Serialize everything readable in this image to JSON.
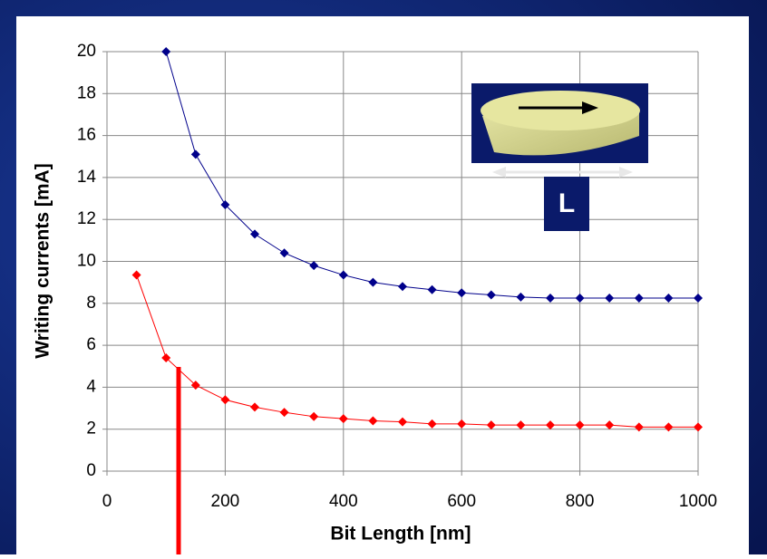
{
  "chart_data": {
    "type": "line",
    "xlabel": "Bit Length [nm]",
    "ylabel": "Writing currents [mA]",
    "xlim": [
      0,
      1000
    ],
    "xticks": [
      0,
      200,
      400,
      600,
      800,
      1000
    ],
    "ylim": [
      0,
      20
    ],
    "yticks": [
      0,
      2,
      4,
      6,
      8,
      10,
      12,
      14,
      16,
      18,
      20
    ],
    "grid": true,
    "inset_label": "L",
    "series": [
      {
        "color": "#00008b",
        "x": [
          100,
          150,
          200,
          250,
          300,
          350,
          400,
          450,
          500,
          550,
          600,
          650,
          700,
          750,
          800,
          850,
          900,
          950,
          1000
        ],
        "values": [
          20,
          15.1,
          12.7,
          11.3,
          10.4,
          9.8,
          9.35,
          9.0,
          8.8,
          8.65,
          8.5,
          8.4,
          8.3,
          8.25,
          8.25,
          8.25,
          8.25,
          8.25,
          8.25
        ]
      },
      {
        "color": "#ff0000",
        "x": [
          50,
          100,
          150,
          200,
          250,
          300,
          350,
          400,
          450,
          500,
          550,
          600,
          650,
          700,
          750,
          800,
          850,
          900,
          950,
          1000
        ],
        "values": [
          9.35,
          5.4,
          4.1,
          3.4,
          3.05,
          2.8,
          2.6,
          2.5,
          2.4,
          2.35,
          2.25,
          2.25,
          2.2,
          2.2,
          2.2,
          2.2,
          2.2,
          2.1,
          2.1,
          2.1
        ]
      }
    ]
  }
}
